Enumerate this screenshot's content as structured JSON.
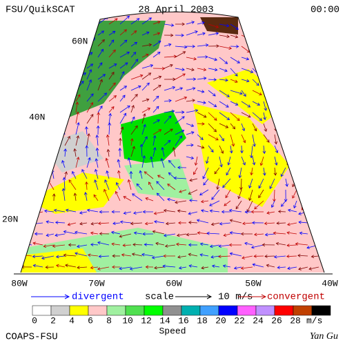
{
  "header": {
    "left": "FSU/QuikSCAT",
    "center": "28 April 2003",
    "right": "00:00"
  },
  "map": {
    "lat_labels": [
      "60N",
      "40N",
      "20N"
    ],
    "lon_labels": [
      "80W",
      "70W",
      "60W",
      "50W",
      "40W"
    ]
  },
  "legend": {
    "divergent": "divergent",
    "scale": "scale",
    "scale_value": "10 m/s",
    "convergent": "convergent"
  },
  "colorbar": {
    "labels": [
      "0",
      "2",
      "4",
      "6",
      "8",
      "10",
      "12",
      "14",
      "16",
      "18",
      "20",
      "22",
      "24",
      "26",
      "28"
    ],
    "colors": [
      "#ffffff",
      "#d0d0d0",
      "#ffff00",
      "#ffc8c8",
      "#a0f0a0",
      "#50e050",
      "#00ff00",
      "#909090",
      "#00b0b0",
      "#40a0ff",
      "#0000ff",
      "#ff60ff",
      "#c090ff",
      "#ff0000",
      "#c04000",
      "#000000"
    ],
    "unit": "m/s",
    "title": "Speed"
  },
  "footer": {
    "left": "COAPS-FSU",
    "right": "Yan Gu"
  }
}
